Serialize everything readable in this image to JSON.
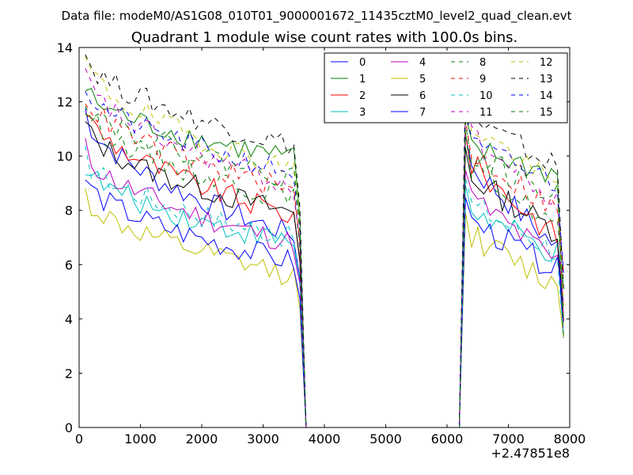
{
  "header": {
    "suptitle": "Data file: modeM0/AS1G08_010T01_9000001672_11435cztM0_level2_quad_clean.evt"
  },
  "chart_data": {
    "type": "line",
    "title": "Quadrant 1 module wise count rates with 100.0s bins.",
    "xlabel": "",
    "ylabel": "",
    "x_offset_label": "+2.47851e8",
    "xlim": [
      0,
      8000
    ],
    "ylim": [
      0,
      14
    ],
    "xticks": [
      0,
      1000,
      2000,
      3000,
      4000,
      5000,
      6000,
      7000,
      8000
    ],
    "yticks": [
      0,
      2,
      4,
      6,
      8,
      10,
      12,
      14
    ],
    "grid": false,
    "legend_position": "top-right",
    "legend_columns": 4,
    "gaps": [
      [
        3700,
        6200
      ]
    ],
    "series": [
      {
        "name": "0",
        "color": "#0000ff",
        "dash": "solid",
        "start": 11.7,
        "end": 7.1,
        "end_b": 6.6
      },
      {
        "name": "1",
        "color": "#008000",
        "dash": "solid",
        "start": 12.5,
        "end": 9.9,
        "end_b": 9.3
      },
      {
        "name": "2",
        "color": "#ff0000",
        "dash": "solid",
        "start": 11.8,
        "end": 7.8,
        "end_b": 7.0
      },
      {
        "name": "3",
        "color": "#00bfbf",
        "dash": "solid",
        "start": 9.7,
        "end": 6.8,
        "end_b": 6.3
      },
      {
        "name": "4",
        "color": "#bf00bf",
        "dash": "solid",
        "start": 10.3,
        "end": 6.8,
        "end_b": 6.1
      },
      {
        "name": "5",
        "color": "#bfbf00",
        "dash": "solid",
        "start": 8.6,
        "end": 5.6,
        "end_b": 5.2
      },
      {
        "name": "6",
        "color": "#000000",
        "dash": "solid",
        "start": 11.2,
        "end": 7.9,
        "end_b": 7.2
      },
      {
        "name": "7",
        "color": "#0000ff",
        "dash": "solid",
        "start": 9.2,
        "end": 6.1,
        "end_b": 5.8
      },
      {
        "name": "8",
        "color": "#008000",
        "dash": "dashed",
        "start": 11.8,
        "end": 8.4,
        "end_b": 7.4
      },
      {
        "name": "9",
        "color": "#ff0000",
        "dash": "dashed",
        "start": 12.3,
        "end": 8.7,
        "end_b": 8.0
      },
      {
        "name": "10",
        "color": "#00bfbf",
        "dash": "dashed",
        "start": 10.0,
        "end": 7.0,
        "end_b": 6.5
      },
      {
        "name": "11",
        "color": "#bf00bf",
        "dash": "dashed",
        "start": 13.0,
        "end": 8.9,
        "end_b": 8.2
      },
      {
        "name": "12",
        "color": "#bfbf00",
        "dash": "dashed",
        "start": 13.6,
        "end": 9.5,
        "end_b": 8.8
      },
      {
        "name": "13",
        "color": "#000000",
        "dash": "dashed",
        "start": 13.8,
        "end": 10.4,
        "end_b": 9.6
      },
      {
        "name": "14",
        "color": "#0000ff",
        "dash": "dashed",
        "start": 12.6,
        "end": 9.4,
        "end_b": 9.0
      },
      {
        "name": "15",
        "color": "#008000",
        "dash": "dashed",
        "start": 12.2,
        "end": 9.2,
        "end_b": 8.5
      }
    ]
  }
}
